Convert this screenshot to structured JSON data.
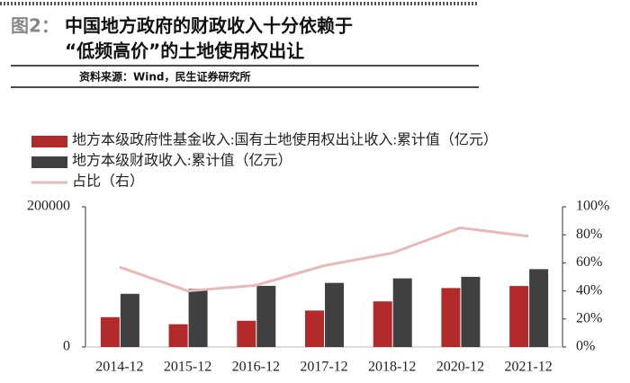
{
  "header": {
    "figure_label": "图2：",
    "title_lines": [
      "中国地方政府的财政收入十分依赖于",
      "“低频高价”的土地使用权出让"
    ],
    "source": "资料来源：Wind，民生证券研究所"
  },
  "chart_data": {
    "type": "bar_line",
    "categories": [
      "2014-12",
      "2015-12",
      "2016-12",
      "2017-12",
      "2018-12",
      "2020-12",
      "2021-12"
    ],
    "series": [
      {
        "name": "地方本级政府性基金收入:国有土地使用权出让收入:累计值（亿元）",
        "color": "#b22a2a",
        "kind": "bar",
        "values": [
          42606,
          32547,
          37457,
          52059,
          65096,
          84142,
          87051
        ]
      },
      {
        "name": "地方本级财政收入:累计值（亿元）",
        "color": "#404040",
        "kind": "bar",
        "values": [
          75877,
          83002,
          87239,
          91469,
          97903,
          100143,
          111077
        ]
      },
      {
        "name": "占比（右）",
        "color": "#e9b9b9",
        "kind": "line",
        "axis": "y2",
        "values": [
          57,
          40,
          44,
          58,
          67,
          85,
          79
        ]
      }
    ],
    "ylim": [
      0,
      200000
    ],
    "yticks": [
      0,
      200000
    ],
    "y2lim": [
      0,
      100
    ],
    "y2ticks": [
      {
        "value": 0,
        "label": "0%"
      },
      {
        "value": 20,
        "label": "20%"
      },
      {
        "value": 40,
        "label": "40%"
      },
      {
        "value": 60,
        "label": "60%"
      },
      {
        "value": 80,
        "label": "80%"
      },
      {
        "value": 100,
        "label": "100%"
      }
    ],
    "grid": false
  }
}
